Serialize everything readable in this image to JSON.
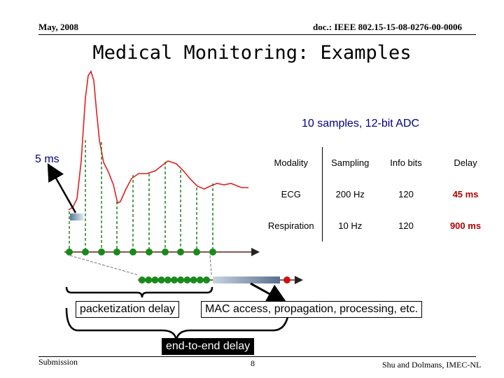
{
  "header": {
    "date": "May, 2008",
    "doc": "doc.: IEEE 802.15-15-08-0276-00-0006"
  },
  "title": "Medical Monitoring: Examples",
  "subtitle": "10 samples, 12-bit ADC",
  "interval_label": "5 ms",
  "table": {
    "headers": [
      "Modality",
      "Sampling",
      "Info bits",
      "Delay"
    ],
    "rows": [
      [
        "ECG",
        "200 Hz",
        "120",
        "45 ms"
      ],
      [
        "Respiration",
        "10 Hz",
        "120",
        "900 ms"
      ]
    ]
  },
  "boxes": {
    "packetization": "packetization delay",
    "mac": "MAC access, propagation, processing, etc.",
    "end_to_end": "end-to-end delay"
  },
  "footer": {
    "submission": "Submission",
    "page": "8",
    "author": "Shu and Dolmans, IMEC-NL"
  },
  "colors": {
    "signal": "#e02020",
    "sample_line": "#208020",
    "sample_dot": "#1a8a1a",
    "packet_dot": "#1a8a1a",
    "mac_dot": "#d01010",
    "label_blue": "#000080"
  }
}
